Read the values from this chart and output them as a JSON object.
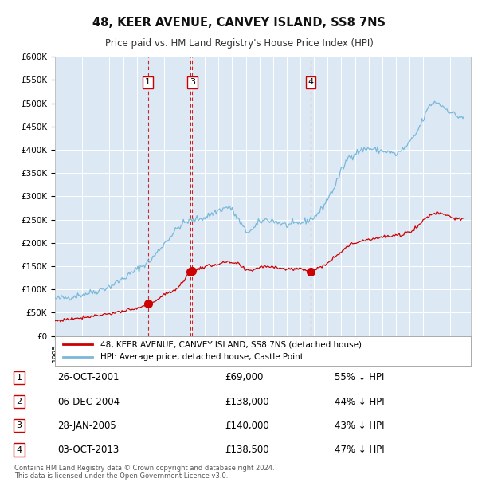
{
  "title": "48, KEER AVENUE, CANVEY ISLAND, SS8 7NS",
  "subtitle": "Price paid vs. HM Land Registry's House Price Index (HPI)",
  "ylim": [
    0,
    600000
  ],
  "yticks": [
    0,
    50000,
    100000,
    150000,
    200000,
    250000,
    300000,
    350000,
    400000,
    450000,
    500000,
    550000,
    600000
  ],
  "ytick_labels": [
    "£0",
    "£50K",
    "£100K",
    "£150K",
    "£200K",
    "£250K",
    "£300K",
    "£350K",
    "£400K",
    "£450K",
    "£500K",
    "£550K",
    "£600K"
  ],
  "background_color": "#ffffff",
  "plot_bg_color": "#dce9f5",
  "grid_color": "#ffffff",
  "hpi_color": "#7ab8d9",
  "price_color": "#cc0000",
  "vline_color": "#cc0000",
  "sales": [
    {
      "label": "1",
      "x": 2001.82,
      "price": 69000,
      "show_label": true
    },
    {
      "label": "2",
      "x": 2004.93,
      "price": 138000,
      "show_label": false
    },
    {
      "label": "3",
      "x": 2005.07,
      "price": 140000,
      "show_label": true
    },
    {
      "label": "4",
      "x": 2013.75,
      "price": 138500,
      "show_label": true
    }
  ],
  "table_rows": [
    {
      "num": "1",
      "date": "26-OCT-2001",
      "price": "£69,000",
      "note": "55% ↓ HPI"
    },
    {
      "num": "2",
      "date": "06-DEC-2004",
      "price": "£138,000",
      "note": "44% ↓ HPI"
    },
    {
      "num": "3",
      "date": "28-JAN-2005",
      "price": "£140,000",
      "note": "43% ↓ HPI"
    },
    {
      "num": "4",
      "date": "03-OCT-2013",
      "price": "£138,500",
      "note": "47% ↓ HPI"
    }
  ],
  "footer": "Contains HM Land Registry data © Crown copyright and database right 2024.\nThis data is licensed under the Open Government Licence v3.0.",
  "legend_price_label": "48, KEER AVENUE, CANVEY ISLAND, SS8 7NS (detached house)",
  "legend_hpi_label": "HPI: Average price, detached house, Castle Point",
  "xmin": 1995.0,
  "xmax": 2025.5,
  "hpi_anchors": [
    [
      1995.0,
      80000
    ],
    [
      1996.0,
      83000
    ],
    [
      1997.0,
      89000
    ],
    [
      1998.0,
      96000
    ],
    [
      1999.0,
      106000
    ],
    [
      2000.0,
      123000
    ],
    [
      2001.0,
      143000
    ],
    [
      2002.0,
      162000
    ],
    [
      2003.0,
      198000
    ],
    [
      2004.0,
      232000
    ],
    [
      2004.5,
      244000
    ],
    [
      2005.0,
      248000
    ],
    [
      2006.0,
      255000
    ],
    [
      2007.0,
      270000
    ],
    [
      2007.8,
      278000
    ],
    [
      2008.5,
      248000
    ],
    [
      2009.0,
      224000
    ],
    [
      2009.5,
      228000
    ],
    [
      2010.0,
      245000
    ],
    [
      2010.5,
      250000
    ],
    [
      2011.0,
      248000
    ],
    [
      2011.5,
      242000
    ],
    [
      2012.0,
      238000
    ],
    [
      2012.5,
      240000
    ],
    [
      2013.0,
      243000
    ],
    [
      2013.5,
      248000
    ],
    [
      2014.0,
      255000
    ],
    [
      2014.5,
      270000
    ],
    [
      2015.0,
      295000
    ],
    [
      2015.5,
      320000
    ],
    [
      2016.0,
      355000
    ],
    [
      2016.5,
      383000
    ],
    [
      2017.0,
      393000
    ],
    [
      2017.5,
      400000
    ],
    [
      2018.0,
      403000
    ],
    [
      2018.5,
      400000
    ],
    [
      2019.0,
      398000
    ],
    [
      2019.5,
      395000
    ],
    [
      2020.0,
      390000
    ],
    [
      2020.5,
      400000
    ],
    [
      2021.0,
      415000
    ],
    [
      2021.5,
      435000
    ],
    [
      2022.0,
      465000
    ],
    [
      2022.5,
      497000
    ],
    [
      2023.0,
      503000
    ],
    [
      2023.5,
      492000
    ],
    [
      2024.0,
      482000
    ],
    [
      2024.5,
      472000
    ],
    [
      2025.0,
      470000
    ]
  ],
  "price_anchors": [
    [
      1995.0,
      32000
    ],
    [
      1996.0,
      36000
    ],
    [
      1997.0,
      40000
    ],
    [
      1998.0,
      44000
    ],
    [
      1999.0,
      48000
    ],
    [
      2000.0,
      53000
    ],
    [
      2001.0,
      58000
    ],
    [
      2001.82,
      69000
    ],
    [
      2002.5,
      78000
    ],
    [
      2003.0,
      88000
    ],
    [
      2004.0,
      103000
    ],
    [
      2004.93,
      138000
    ],
    [
      2005.07,
      140000
    ],
    [
      2005.5,
      145000
    ],
    [
      2006.0,
      148000
    ],
    [
      2006.5,
      152000
    ],
    [
      2007.0,
      155000
    ],
    [
      2007.5,
      158000
    ],
    [
      2008.0,
      157000
    ],
    [
      2008.5,
      154000
    ],
    [
      2009.0,
      140000
    ],
    [
      2009.5,
      142000
    ],
    [
      2010.0,
      148000
    ],
    [
      2010.5,
      150000
    ],
    [
      2011.0,
      149000
    ],
    [
      2011.5,
      147000
    ],
    [
      2012.0,
      143000
    ],
    [
      2012.5,
      144000
    ],
    [
      2013.0,
      145000
    ],
    [
      2013.75,
      138500
    ],
    [
      2014.0,
      140000
    ],
    [
      2014.5,
      148000
    ],
    [
      2015.0,
      158000
    ],
    [
      2015.5,
      170000
    ],
    [
      2016.0,
      182000
    ],
    [
      2016.5,
      193000
    ],
    [
      2017.0,
      200000
    ],
    [
      2017.5,
      205000
    ],
    [
      2018.0,
      208000
    ],
    [
      2018.5,
      210000
    ],
    [
      2019.0,
      212000
    ],
    [
      2019.5,
      214000
    ],
    [
      2020.0,
      215000
    ],
    [
      2020.5,
      218000
    ],
    [
      2021.0,
      224000
    ],
    [
      2021.5,
      233000
    ],
    [
      2022.0,
      248000
    ],
    [
      2022.5,
      260000
    ],
    [
      2023.0,
      265000
    ],
    [
      2023.5,
      263000
    ],
    [
      2024.0,
      257000
    ],
    [
      2024.5,
      251000
    ],
    [
      2025.0,
      250000
    ]
  ]
}
